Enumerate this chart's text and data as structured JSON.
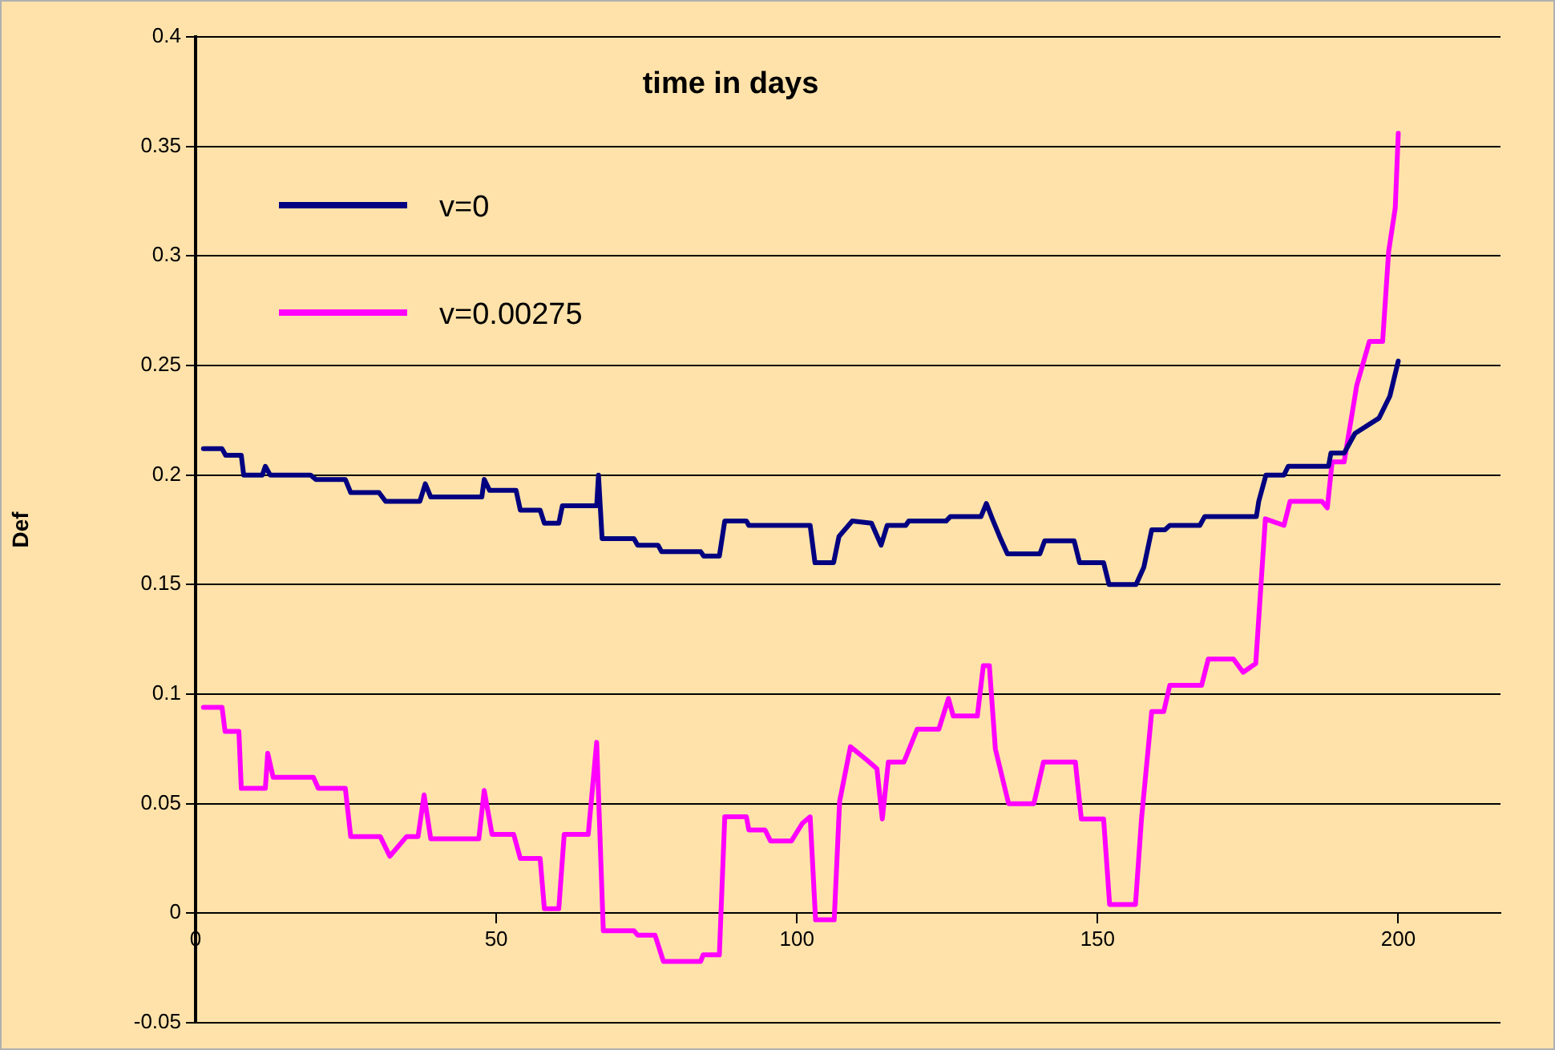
{
  "chart_data": {
    "type": "line",
    "title": "time in days",
    "ylabel": "Def",
    "xlim": [
      0,
      217
    ],
    "xticks": [
      0,
      50,
      100,
      150,
      200
    ],
    "ylim": [
      -0.05,
      0.4
    ],
    "yticks": [
      -0.05,
      0,
      0.05,
      0.1,
      0.15,
      0.2,
      0.25,
      0.3,
      0.35,
      0.4
    ],
    "grid": "y",
    "legend": "top left",
    "marker": "none",
    "line_style": "solid",
    "series": [
      {
        "name": "v=0",
        "color": "#000080",
        "x": [
          1.3,
          4.4,
          5,
          7.6,
          8,
          11.1,
          11.6,
          12.4,
          19.1,
          20,
          24.9,
          25.8,
          30.5,
          31.6,
          37.3,
          38.2,
          39.1,
          47.6,
          48,
          48.9,
          53.3,
          54,
          57.3,
          58,
          60.4,
          61,
          66.7,
          67,
          67.6,
          72.9,
          73.5,
          76.9,
          77.5,
          84,
          84.5,
          87.1,
          88,
          91.6,
          92,
          102.2,
          103,
          106.1,
          107,
          109.2,
          112.4,
          114,
          115,
          118.1,
          118.6,
          124.8,
          125.5,
          130.6,
          131.5,
          132.5,
          133.7,
          135,
          140.4,
          141.2,
          146.1,
          147,
          151,
          151.9,
          156.4,
          157.7,
          159,
          161.2,
          162,
          167,
          167.8,
          176.4,
          176.8,
          178,
          181,
          181.7,
          188.4,
          188.8,
          191,
          192.8,
          196.8,
          198.6,
          200
        ],
        "values": [
          0.212,
          0.212,
          0.209,
          0.209,
          0.2,
          0.2,
          0.204,
          0.2,
          0.2,
          0.198,
          0.198,
          0.192,
          0.192,
          0.188,
          0.188,
          0.196,
          0.19,
          0.19,
          0.198,
          0.193,
          0.193,
          0.184,
          0.184,
          0.178,
          0.178,
          0.186,
          0.186,
          0.2,
          0.171,
          0.171,
          0.168,
          0.168,
          0.165,
          0.165,
          0.163,
          0.163,
          0.179,
          0.179,
          0.177,
          0.177,
          0.16,
          0.16,
          0.172,
          0.179,
          0.178,
          0.168,
          0.177,
          0.177,
          0.179,
          0.179,
          0.181,
          0.181,
          0.187,
          0.18,
          0.172,
          0.164,
          0.164,
          0.17,
          0.17,
          0.16,
          0.16,
          0.15,
          0.15,
          0.158,
          0.175,
          0.175,
          0.177,
          0.177,
          0.181,
          0.181,
          0.188,
          0.2,
          0.2,
          0.204,
          0.204,
          0.21,
          0.21,
          0.219,
          0.226,
          0.236,
          0.252
        ]
      },
      {
        "name": "v=0.00275",
        "color": "#ff00ff",
        "x": [
          1.3,
          4.4,
          4.9,
          7.2,
          7.6,
          11.6,
          12,
          12.9,
          19.6,
          20.4,
          24.9,
          25.8,
          30.7,
          32.3,
          35.1,
          37,
          38,
          39.1,
          47.1,
          48,
          49.3,
          52.9,
          54,
          57.3,
          58,
          60.4,
          61.3,
          65.3,
          66.7,
          67.8,
          72.9,
          73.5,
          76.4,
          77.8,
          84,
          84.4,
          87.1,
          88,
          91.6,
          92,
          94.7,
          95.6,
          99.1,
          100.9,
          102.2,
          103.1,
          106.2,
          107.1,
          108.9,
          111.6,
          113.3,
          114.2,
          115.2,
          117.8,
          120,
          123.6,
          125.2,
          126,
          130,
          131,
          132,
          133,
          135.2,
          139.4,
          141,
          146.3,
          147.3,
          151,
          152,
          156.3,
          157.3,
          159,
          161,
          162,
          167.3,
          168.4,
          172.6,
          174.2,
          176.3,
          177.9,
          181,
          182,
          187.3,
          188.2,
          189,
          191,
          193.1,
          195.2,
          197.4,
          198.4,
          199.5,
          200
        ],
        "values": [
          0.094,
          0.094,
          0.083,
          0.083,
          0.057,
          0.057,
          0.073,
          0.062,
          0.062,
          0.057,
          0.057,
          0.035,
          0.035,
          0.026,
          0.035,
          0.035,
          0.054,
          0.034,
          0.034,
          0.056,
          0.036,
          0.036,
          0.025,
          0.025,
          0.002,
          0.002,
          0.036,
          0.036,
          0.078,
          -0.008,
          -0.008,
          -0.01,
          -0.01,
          -0.022,
          -0.022,
          -0.019,
          -0.019,
          0.044,
          0.044,
          0.038,
          0.038,
          0.033,
          0.033,
          0.041,
          0.044,
          -0.003,
          -0.003,
          0.051,
          0.076,
          0.07,
          0.066,
          0.043,
          0.069,
          0.069,
          0.084,
          0.084,
          0.098,
          0.09,
          0.09,
          0.113,
          0.113,
          0.075,
          0.05,
          0.05,
          0.069,
          0.069,
          0.043,
          0.043,
          0.004,
          0.004,
          0.043,
          0.092,
          0.092,
          0.104,
          0.104,
          0.116,
          0.116,
          0.11,
          0.114,
          0.18,
          0.177,
          0.188,
          0.188,
          0.185,
          0.206,
          0.206,
          0.241,
          0.261,
          0.261,
          0.302,
          0.322,
          0.356
        ]
      }
    ]
  }
}
